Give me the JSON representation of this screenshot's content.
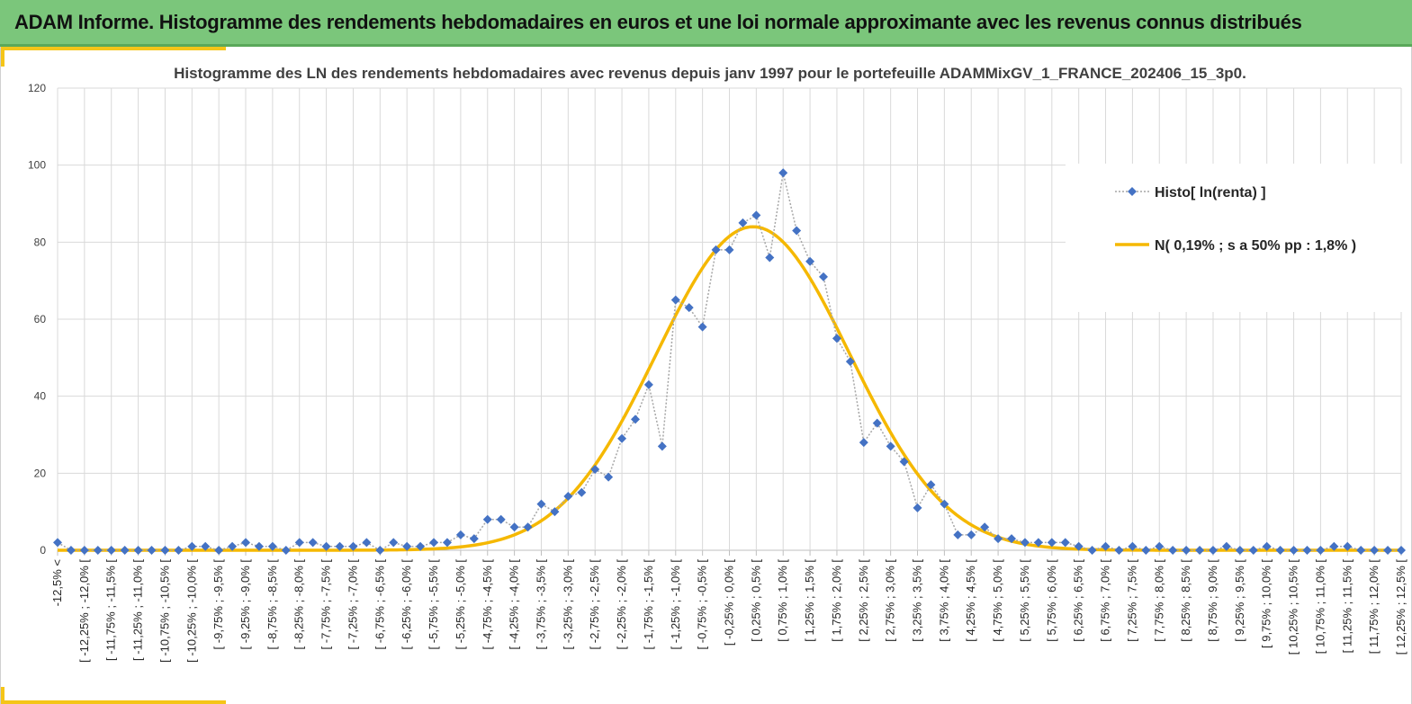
{
  "banner": {
    "title": "ADAM Informe. Histogramme des rendements hebdomadaires en euros et une loi normale approximante avec les revenus connus distribués"
  },
  "colors": {
    "banner_bg": "#7bc67b",
    "accent_yellow": "#f5c518",
    "histo_marker": "#4472c4",
    "histo_line": "#a6a6a6",
    "normal_curve": "#f5b800",
    "grid": "#d9d9d9"
  },
  "chart_data": {
    "type": "line",
    "title": "Histogramme des LN des rendements hebdomadaires avec revenus depuis janv 1997 pour le portefeuille ADAMMixGV_1_FRANCE_202406_15_3p0.",
    "xlabel": "",
    "ylabel": "",
    "ylim": [
      0,
      120
    ],
    "yticks": [
      0,
      20,
      40,
      60,
      80,
      100,
      120
    ],
    "grid": true,
    "legend_position": "right",
    "x_tick_labels": [
      "-12,5% <",
      "[ -12,25% ; -12,0% [",
      "[ -11,75% ; -11,5% [",
      "[ -11,25% ; -11,0% [",
      "[ -10,75% ; -10,5% [",
      "[ -10,25% ; -10,0% [",
      "[ -9,75% ; -9,5% [",
      "[ -9,25% ; -9,0% [",
      "[ -8,75% ; -8,5% [",
      "[ -8,25% ; -8,0% [",
      "[ -7,75% ; -7,5% [",
      "[ -7,25% ; -7,0% [",
      "[ -6,75% ; -6,5% [",
      "[ -6,25% ; -6,0% [",
      "[ -5,75% ; -5,5% [",
      "[ -5,25% ; -5,0% [",
      "[ -4,75% ; -4,5% [",
      "[ -4,25% ; -4,0% [",
      "[ -3,75% ; -3,5% [",
      "[ -3,25% ; -3,0% [",
      "[ -2,75% ; -2,5% [",
      "[ -2,25% ; -2,0% [",
      "[ -1,75% ; -1,5% [",
      "[ -1,25% ; -1,0% [",
      "[ -0,75% ; -0,5% [",
      "[ -0,25% ; 0,0% [",
      "[ 0,25% ; 0,5% [",
      "[ 0,75% ; 1,0% [",
      "[ 1,25% ; 1,5% [",
      "[ 1,75% ; 2,0% [",
      "[ 2,25% ; 2,5% [",
      "[ 2,75% ; 3,0% [",
      "[ 3,25% ; 3,5% [",
      "[ 3,75% ; 4,0% [",
      "[ 4,25% ; 4,5% [",
      "[ 4,75% ; 5,0% [",
      "[ 5,25% ; 5,5% [",
      "[ 5,75% ; 6,0% [",
      "[ 6,25% ; 6,5% [",
      "[ 6,75% ; 7,0% [",
      "[ 7,25% ; 7,5% [",
      "[ 7,75% ; 8,0% [",
      "[ 8,25% ; 8,5% [",
      "[ 8,75% ; 9,0% [",
      "[ 9,25% ; 9,5% [",
      "[ 9,75% ; 10,0% [",
      "[ 10,25% ; 10,5% [",
      "[ 10,75% ; 11,0% [",
      "[ 11,25% ; 11,5% [",
      "[ 11,75% ; 12,0% [",
      "[ 12,25% ; 12,5% ["
    ],
    "series": [
      {
        "name": "Histo[ ln(renta) ]",
        "style": "dotted-line-diamond-markers",
        "values": [
          2,
          0,
          0,
          0,
          0,
          0,
          0,
          0,
          0,
          0,
          1,
          1,
          0,
          1,
          2,
          1,
          1,
          0,
          2,
          2,
          1,
          1,
          1,
          2,
          0,
          2,
          1,
          1,
          2,
          2,
          4,
          3,
          8,
          8,
          6,
          6,
          12,
          10,
          14,
          15,
          21,
          19,
          29,
          34,
          43,
          27,
          65,
          63,
          58,
          78,
          78,
          85,
          87,
          76,
          98,
          83,
          75,
          71,
          55,
          49,
          28,
          33,
          27,
          23,
          11,
          17,
          12,
          4,
          4,
          6,
          3,
          3,
          2,
          2,
          2,
          2,
          1,
          0,
          1,
          0,
          1,
          0,
          1,
          0,
          0,
          0,
          0,
          1,
          0,
          0,
          1,
          0,
          0,
          0,
          0,
          1,
          1,
          0,
          0,
          0,
          0
        ]
      },
      {
        "name": "N( 0,19% ; s a 50% pp : 1,8% )",
        "style": "smooth-line",
        "distribution": {
          "type": "normal",
          "mean_bin": 51.76,
          "sd_bins": 7.2,
          "peak": 84
        }
      }
    ]
  }
}
